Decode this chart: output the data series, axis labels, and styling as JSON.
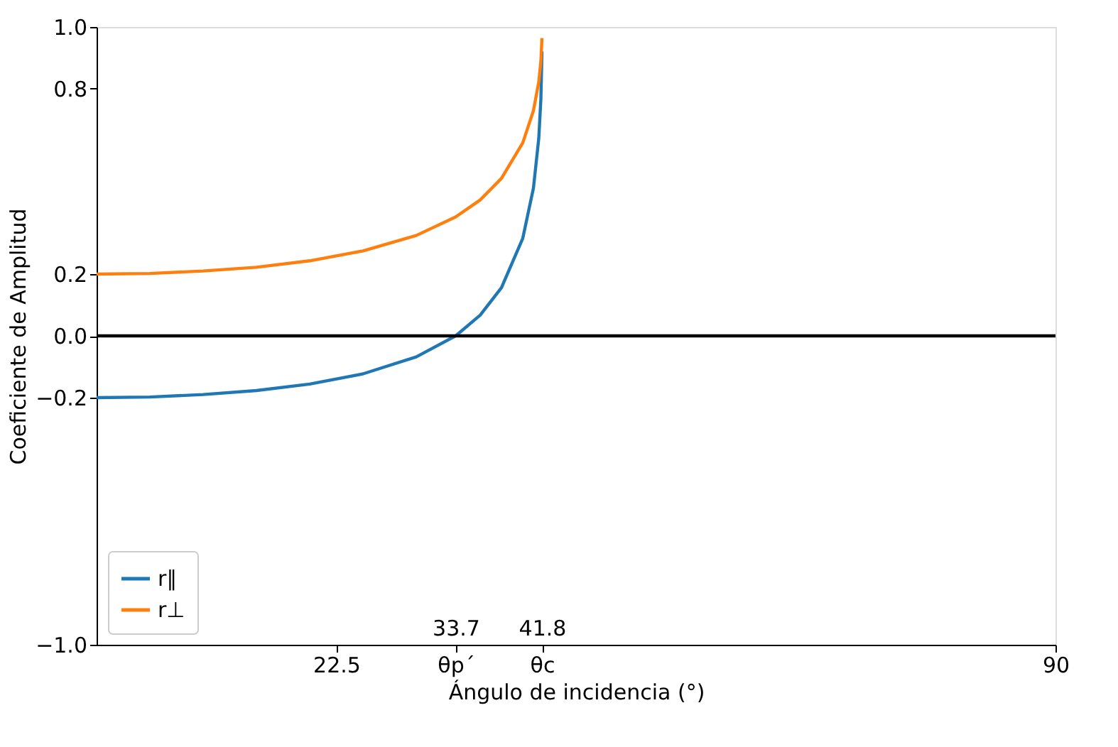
{
  "chart_data": {
    "type": "line",
    "xlabel": "Ángulo de incidencia (°)",
    "ylabel": "Coeficiente de Amplitud",
    "x": [
      0,
      5,
      10,
      15,
      20,
      25,
      30,
      33.7,
      36,
      38,
      40,
      41,
      41.5,
      41.7,
      41.8
    ],
    "series": [
      {
        "name": "r∥",
        "color": "#1f77b4",
        "values": [
          -0.2,
          -0.198,
          -0.19,
          -0.177,
          -0.156,
          -0.123,
          -0.068,
          0.0,
          0.067,
          0.156,
          0.316,
          0.478,
          0.639,
          0.767,
          0.921
        ]
      },
      {
        "name": "r⊥",
        "color": "#ff7f0e",
        "values": [
          0.2,
          0.202,
          0.21,
          0.222,
          0.243,
          0.275,
          0.325,
          0.385,
          0.44,
          0.51,
          0.625,
          0.729,
          0.822,
          0.889,
          0.964
        ]
      }
    ],
    "xlim": [
      0,
      90
    ],
    "xticks": [
      22.5,
      {
        "value": 33.7,
        "label": "θp´"
      },
      {
        "value": 41.8,
        "label": "θc"
      },
      90
    ],
    "ylim": [
      -1,
      1
    ],
    "yticks": [
      {
        "value": -1,
        "label": "−1.0"
      },
      {
        "value": -0.2,
        "label": "−0.2"
      },
      {
        "value": 0,
        "label": "0.0"
      },
      0.2,
      0.8,
      {
        "value": 1,
        "label": "1.0"
      }
    ],
    "ref_lines": [
      {
        "axis": "y",
        "value": 0,
        "color": "#000000"
      }
    ],
    "x2lim": [
      0,
      90
    ],
    "x2ticks": [
      33.7,
      41.8
    ],
    "legend": "bottom left",
    "grid": false,
    "marker": "none"
  }
}
